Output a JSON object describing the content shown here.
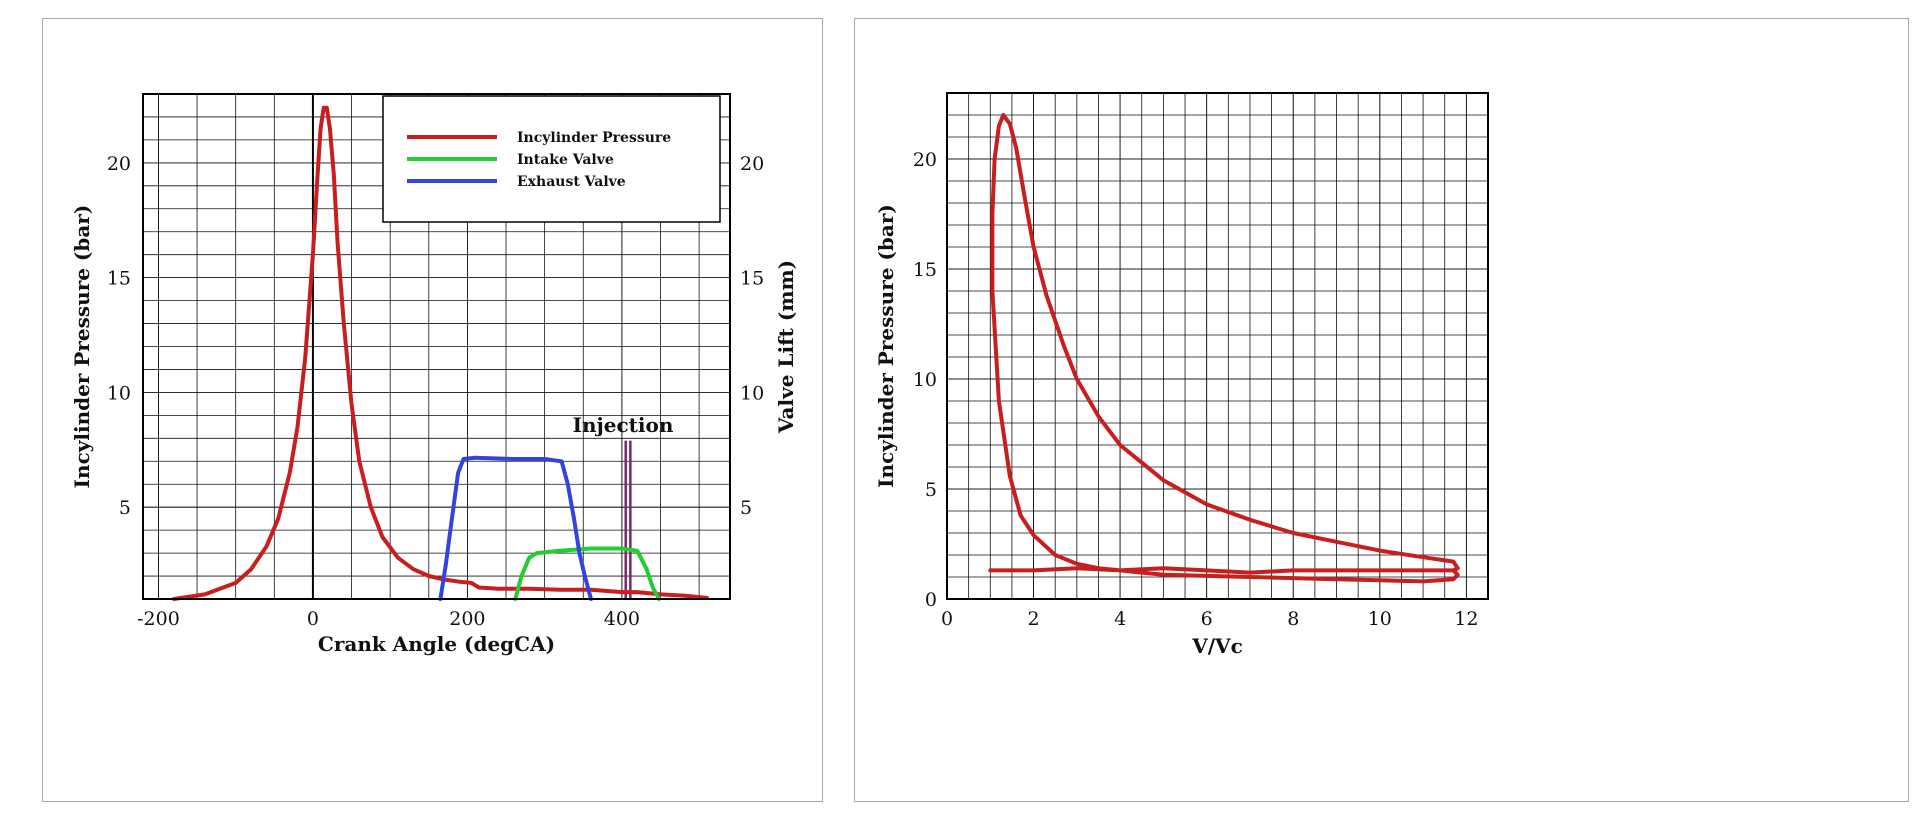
{
  "colors": {
    "pressure": "#c81e1e",
    "intake": "#22cc33",
    "exhaust": "#3344dd",
    "injection": "#7a2a6a",
    "grid": "#111111"
  },
  "chart_data": [
    {
      "type": "line",
      "xlabel": "Crank Angle (degCA)",
      "ylabel": "Incylinder Pressure (bar)",
      "y2label": "Valve Lift (mm)",
      "xlim": [
        -220,
        540
      ],
      "ylim": [
        1,
        23
      ],
      "y2lim": [
        1,
        23
      ],
      "x_ticks": [
        -200,
        0,
        200,
        400
      ],
      "y_ticks": [
        5,
        10,
        15,
        20
      ],
      "y2_ticks": [
        5,
        10,
        15,
        20
      ],
      "grid": true,
      "legend_position": "top-right",
      "annotation": "Injection",
      "injection_x": [
        405,
        411
      ],
      "series": [
        {
          "name": "Incylinder Pressure",
          "axis": "left",
          "points": [
            [
              -180,
              1.0
            ],
            [
              -140,
              1.2
            ],
            [
              -100,
              1.7
            ],
            [
              -80,
              2.3
            ],
            [
              -60,
              3.3
            ],
            [
              -45,
              4.5
            ],
            [
              -30,
              6.5
            ],
            [
              -20,
              8.5
            ],
            [
              -10,
              11.5
            ],
            [
              0,
              16.0
            ],
            [
              6,
              19.5
            ],
            [
              10,
              21.5
            ],
            [
              14,
              22.4
            ],
            [
              18,
              22.4
            ],
            [
              22,
              21.5
            ],
            [
              27,
              19.5
            ],
            [
              32,
              16.5
            ],
            [
              40,
              13.0
            ],
            [
              50,
              9.5
            ],
            [
              60,
              7.0
            ],
            [
              75,
              5.0
            ],
            [
              90,
              3.7
            ],
            [
              110,
              2.8
            ],
            [
              130,
              2.3
            ],
            [
              150,
              2.0
            ],
            [
              170,
              1.85
            ],
            [
              190,
              1.75
            ],
            [
              205,
              1.7
            ],
            [
              215,
              1.5
            ],
            [
              240,
              1.45
            ],
            [
              280,
              1.45
            ],
            [
              320,
              1.4
            ],
            [
              360,
              1.4
            ],
            [
              400,
              1.3
            ],
            [
              420,
              1.3
            ],
            [
              450,
              1.2
            ],
            [
              480,
              1.15
            ],
            [
              510,
              1.05
            ]
          ]
        },
        {
          "name": "Intake Valve",
          "axis": "right",
          "points": [
            [
              262,
              1.0
            ],
            [
              270,
              2.0
            ],
            [
              280,
              2.8
            ],
            [
              290,
              3.0
            ],
            [
              320,
              3.1
            ],
            [
              360,
              3.2
            ],
            [
              400,
              3.2
            ],
            [
              420,
              3.1
            ],
            [
              432,
              2.3
            ],
            [
              440,
              1.5
            ],
            [
              448,
              1.0
            ]
          ]
        },
        {
          "name": "Exhaust Valve",
          "axis": "right",
          "points": [
            [
              165,
              1.0
            ],
            [
              172,
              2.5
            ],
            [
              180,
              4.5
            ],
            [
              188,
              6.5
            ],
            [
              195,
              7.1
            ],
            [
              210,
              7.15
            ],
            [
              260,
              7.1
            ],
            [
              300,
              7.1
            ],
            [
              322,
              7.0
            ],
            [
              330,
              6.0
            ],
            [
              338,
              4.5
            ],
            [
              345,
              3.0
            ],
            [
              352,
              2.0
            ],
            [
              360,
              1.0
            ]
          ]
        }
      ]
    },
    {
      "type": "line",
      "xlabel": "V/Vc",
      "ylabel": "Incylinder Pressure (bar)",
      "xlim": [
        0,
        12.5
      ],
      "ylim": [
        0,
        23
      ],
      "x_ticks": [
        0,
        2,
        4,
        6,
        8,
        10,
        12
      ],
      "y_ticks": [
        0,
        5,
        10,
        15,
        20
      ],
      "grid": true,
      "series": [
        {
          "name": "",
          "points": [
            [
              1.0,
              1.3
            ],
            [
              2.0,
              1.3
            ],
            [
              3.0,
              1.4
            ],
            [
              4.0,
              1.3
            ],
            [
              5.0,
              1.4
            ],
            [
              6.0,
              1.3
            ],
            [
              7.0,
              1.2
            ],
            [
              8.0,
              1.3
            ],
            [
              9.0,
              1.3
            ],
            [
              10.0,
              1.3
            ],
            [
              11.0,
              1.3
            ],
            [
              11.7,
              1.3
            ],
            [
              11.8,
              1.1
            ],
            [
              11.7,
              0.9
            ],
            [
              11.0,
              0.8
            ],
            [
              10.0,
              0.85
            ],
            [
              9.0,
              0.9
            ],
            [
              8.0,
              0.95
            ],
            [
              7.0,
              1.0
            ],
            [
              6.0,
              1.05
            ],
            [
              5.0,
              1.1
            ],
            [
              4.0,
              1.3
            ],
            [
              3.5,
              1.4
            ],
            [
              3.0,
              1.6
            ],
            [
              2.5,
              2.0
            ],
            [
              2.0,
              2.9
            ],
            [
              1.7,
              3.8
            ],
            [
              1.45,
              5.6
            ],
            [
              1.2,
              9.0
            ],
            [
              1.05,
              14.0
            ],
            [
              1.05,
              17.5
            ],
            [
              1.1,
              20.0
            ],
            [
              1.2,
              21.5
            ],
            [
              1.3,
              22.0
            ],
            [
              1.45,
              21.6
            ],
            [
              1.6,
              20.5
            ],
            [
              1.8,
              18.2
            ],
            [
              2.0,
              16.0
            ],
            [
              2.3,
              13.8
            ],
            [
              2.7,
              11.5
            ],
            [
              3.0,
              10.0
            ],
            [
              3.5,
              8.3
            ],
            [
              4.0,
              7.0
            ],
            [
              5.0,
              5.4
            ],
            [
              6.0,
              4.3
            ],
            [
              7.0,
              3.6
            ],
            [
              8.0,
              3.0
            ],
            [
              9.0,
              2.6
            ],
            [
              10.0,
              2.2
            ],
            [
              11.0,
              1.9
            ],
            [
              11.7,
              1.7
            ],
            [
              11.8,
              1.4
            ],
            [
              11.7,
              1.3
            ]
          ]
        }
      ]
    }
  ]
}
